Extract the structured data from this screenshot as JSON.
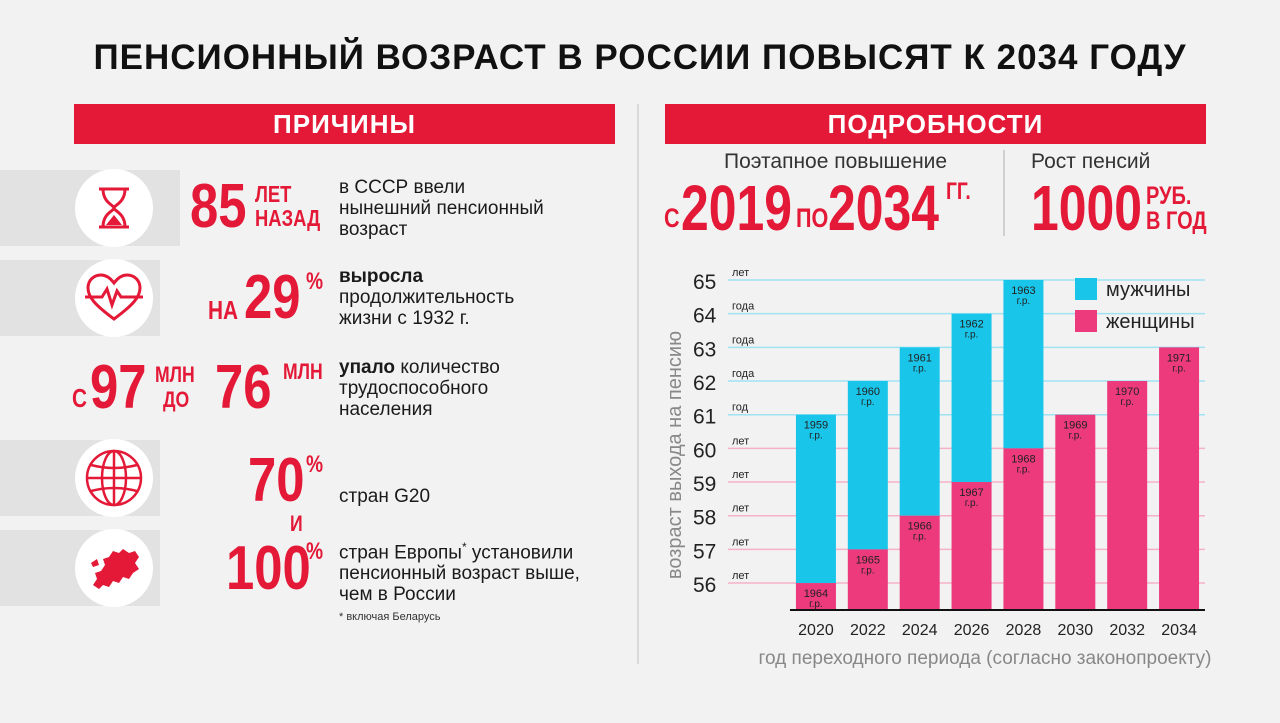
{
  "title_regular": "ПЕНСИОННЫЙ ВОЗРАСТ В РОССИИ ПОВЫСЯТ",
  "title_bold": "К 2034 ГОДУ",
  "reasons": {
    "header": "ПРИЧИНЫ",
    "row1": {
      "number": "85",
      "unit1": "ЛЕТ",
      "unit2": "НАЗАД",
      "text1": "в СССР ввели",
      "text2": "нынешний пенсионный",
      "text3": "возраст"
    },
    "row2": {
      "prefix": "НА",
      "number": "29",
      "unit": "%",
      "bold": "выросла",
      "text2": "продолжительность",
      "text3": "жизни с 1932 г."
    },
    "row3": {
      "from": "С",
      "num1": "97",
      "unit1": "МЛН",
      "to": "ДО",
      "num2": "76",
      "unit2": "МЛН",
      "bold": "упало",
      "text1": " количество",
      "text2": "трудоспособного",
      "text3": "населения"
    },
    "row4": {
      "number": "70",
      "unit": "%",
      "text": "стран G20",
      "conj": "И"
    },
    "row5": {
      "number": "100",
      "unit": "%",
      "text1a": "стран Европы",
      "star": "*",
      "text1b": " установили",
      "text2": "пенсионный возраст выше,",
      "text3": "чем в России"
    },
    "footnote": "* включая Беларусь"
  },
  "details": {
    "header": "ПОДРОБНОСТИ",
    "stepwise_label": "Поэтапное повышение",
    "from": "С",
    "year_from": "2019",
    "to": "ПО",
    "year_to": "2034",
    "years_unit": "ГГ.",
    "growth_label": "Рост пенсий",
    "growth_value": "1000",
    "growth_unit1": "РУБ.",
    "growth_unit2": "В ГОД"
  },
  "colors": {
    "red": "#e31937",
    "men": "#19c6ea",
    "women": "#ec3a7c"
  },
  "chart_data": {
    "type": "bar",
    "ylabel": "возраст выхода на пенсию",
    "xlabel": "год переходного периода (согласно законопроекту)",
    "ylim": [
      55.2,
      65
    ],
    "y_ticks": [
      {
        "value": 65,
        "unit": "лет"
      },
      {
        "value": 64,
        "unit": "года"
      },
      {
        "value": 63,
        "unit": "года"
      },
      {
        "value": 62,
        "unit": "года"
      },
      {
        "value": 61,
        "unit": "год"
      },
      {
        "value": 60,
        "unit": "лет"
      },
      {
        "value": 59,
        "unit": "лет"
      },
      {
        "value": 58,
        "unit": "лет"
      },
      {
        "value": 57,
        "unit": "лет"
      },
      {
        "value": 56,
        "unit": "лет"
      }
    ],
    "categories": [
      "2020",
      "2022",
      "2024",
      "2026",
      "2028",
      "2030",
      "2032",
      "2034"
    ],
    "series": [
      {
        "name": "мужчины",
        "values": [
          61,
          62,
          63,
          64,
          65,
          null,
          null,
          null
        ],
        "labels": [
          "1959\nг.р.",
          "1960\nг.р.",
          "1961\nг.р.",
          "1962\nг.р.",
          "1963\nг.р.",
          "",
          "",
          ""
        ]
      },
      {
        "name": "женщины",
        "values": [
          56,
          57,
          58,
          59,
          60,
          61,
          62,
          63
        ],
        "labels": [
          "1964\nг.р.",
          "1965\nг.р.",
          "1966\nг.р.",
          "1967\nг.р.",
          "1968\nг.р.",
          "1969\nг.р.",
          "1970\nг.р.",
          "1971\nг.р."
        ]
      }
    ],
    "legend": "top-right"
  }
}
